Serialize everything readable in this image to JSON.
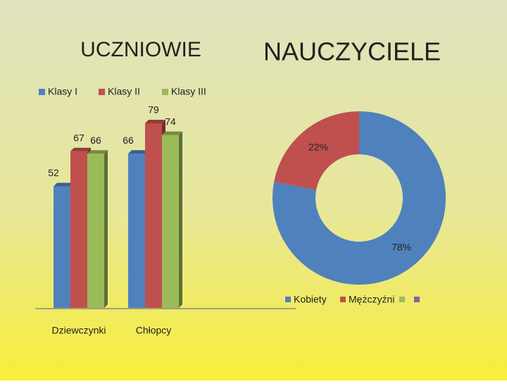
{
  "chart_data": [
    {
      "type": "bar",
      "title": "UCZNIOWIE",
      "categories": [
        "Dziewczynki",
        "Chłopcy"
      ],
      "series": [
        {
          "name": "Klasy I",
          "color": "#4f81bd",
          "values": [
            52,
            66
          ]
        },
        {
          "name": "Klasy II",
          "color": "#c0504d",
          "values": [
            67,
            79
          ]
        },
        {
          "name": "Klasy III",
          "color": "#9bbb59",
          "values": [
            66,
            74
          ]
        }
      ]
    },
    {
      "type": "pie",
      "title": "NAUCZYCIELE",
      "categories": [
        "Kobiety",
        "Mężczyźni",
        null,
        null
      ],
      "values": [
        78,
        22,
        null,
        null
      ],
      "value_labels": [
        "78%",
        "22%",
        null,
        null
      ],
      "colors": [
        "#4f81bd",
        "#c0504d",
        "#9bbb59",
        "#8064a2"
      ]
    }
  ]
}
